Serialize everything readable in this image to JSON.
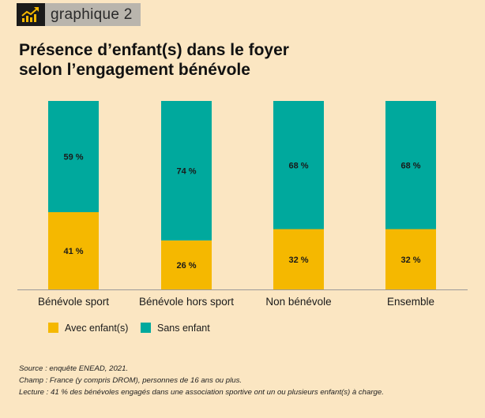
{
  "header": {
    "label": "graphique 2"
  },
  "title": "Présence d’enfant(s) dans le foyer\nselon l’engagement bénévole",
  "chart_data": {
    "type": "bar",
    "stacked": true,
    "categories": [
      "Bénévole sport",
      "Bénévole hors sport",
      "Non bénévole",
      "Ensemble"
    ],
    "series": [
      {
        "name": "Avec enfant(s)",
        "values": [
          41,
          26,
          32,
          32
        ],
        "labels": [
          "41 %",
          "26 %",
          "32 %",
          "32 %"
        ],
        "color": "#f5b800"
      },
      {
        "name": "Sans enfant",
        "values": [
          59,
          74,
          68,
          68
        ],
        "labels": [
          "59 %",
          "74 %",
          "68 %",
          "68 %"
        ],
        "color": "#00a99d"
      }
    ],
    "ylim": [
      0,
      100
    ],
    "legend_position": "bottom-left",
    "grid": false
  },
  "notes": {
    "source": "Source : enquête ENEAD, 2021.",
    "champ": "Champ : France (y compris DROM), personnes de 16 ans ou plus.",
    "lecture": "Lecture : 41 % des bénévoles engagés dans une association sportive ont un ou plusieurs enfant(s) à charge."
  },
  "colors": {
    "background": "#fbe6c2",
    "axis": "#9a9a9a"
  }
}
